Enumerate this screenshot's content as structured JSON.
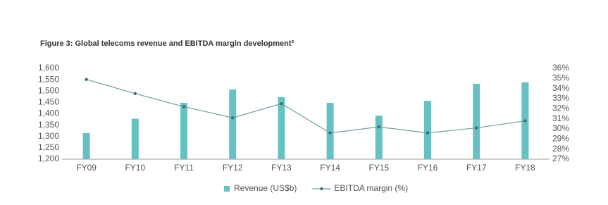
{
  "chart_data": {
    "type": "bar",
    "title": "Figure 3: Global telecoms revenue and EBITDA margin development²",
    "categories": [
      "FY09",
      "FY10",
      "FY11",
      "FY12",
      "FY13",
      "FY14",
      "FY15",
      "FY16",
      "FY17",
      "FY18"
    ],
    "series": [
      {
        "name": "Revenue (US$b)",
        "type": "bar",
        "color": "#66c2c2",
        "values": [
          1315,
          1378,
          1448,
          1507,
          1473,
          1448,
          1392,
          1457,
          1532,
          1538
        ]
      },
      {
        "name": "EBITDA margin (%)",
        "type": "line",
        "axis": "y2",
        "color": "#6f9fa3",
        "values": [
          34.9,
          33.5,
          32.2,
          31.1,
          32.5,
          29.6,
          30.2,
          29.6,
          30.1,
          30.8
        ]
      }
    ],
    "ylim": [
      1200,
      1600
    ],
    "yticks": [
      {
        "value": 1200,
        "label": "1,200"
      },
      {
        "value": 1250,
        "label": "1,250"
      },
      {
        "value": 1300,
        "label": "1,300"
      },
      {
        "value": 1350,
        "label": "1,350"
      },
      {
        "value": 1400,
        "label": "1,400"
      },
      {
        "value": 1450,
        "label": "1,450"
      },
      {
        "value": 1500,
        "label": "1,500"
      },
      {
        "value": 1550,
        "label": "1,550"
      },
      {
        "value": 1600,
        "label": "1,600"
      }
    ],
    "y2lim": [
      27,
      36
    ],
    "y2ticks": [
      {
        "value": 27,
        "label": "27%"
      },
      {
        "value": 28,
        "label": "28%"
      },
      {
        "value": 29,
        "label": "29%"
      },
      {
        "value": 30,
        "label": "30%"
      },
      {
        "value": 31,
        "label": "31%"
      },
      {
        "value": 32,
        "label": "32%"
      },
      {
        "value": 33,
        "label": "33%"
      },
      {
        "value": 34,
        "label": "34%"
      },
      {
        "value": 35,
        "label": "35%"
      },
      {
        "value": 36,
        "label": "36%"
      }
    ],
    "grid": false,
    "legend": "bottom"
  }
}
